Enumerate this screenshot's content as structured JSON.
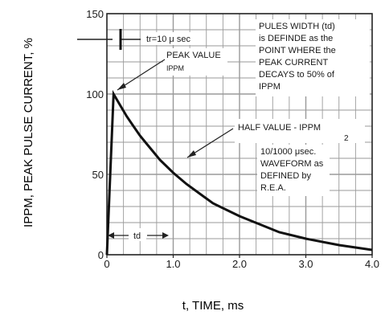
{
  "chart_data": {
    "type": "line",
    "title": "",
    "xlabel": "t, TIME, ms",
    "ylabel": "IPPM, PEAK PULSE CURRENT, %",
    "xlim": [
      0,
      4.0
    ],
    "ylim": [
      0,
      150
    ],
    "x_ticks": [
      "0",
      "1.0",
      "2.0",
      "3.0",
      "4.0"
    ],
    "y_ticks": [
      "0",
      "50",
      "100",
      "150"
    ],
    "grid": true,
    "series": [
      {
        "x": [
          0,
          0.1,
          0.2,
          0.3,
          0.4,
          0.5,
          0.6,
          0.7,
          0.8,
          0.9,
          1.0,
          1.2,
          1.4,
          1.6,
          1.8,
          2.0,
          2.3,
          2.6,
          3.0,
          3.5,
          4.0
        ],
        "y": [
          0,
          100,
          93,
          86,
          80,
          74,
          69,
          64,
          59,
          55,
          51,
          44,
          38,
          32,
          28,
          24,
          19,
          14,
          10,
          6,
          3
        ]
      }
    ],
    "annotations": {
      "tr": "tr=10 μ sec",
      "peak_value": "PEAK VALUE",
      "peak_sub": "IPPM",
      "pulse_width": [
        "PULES WIDTH (td)",
        "is DEFINDE as the",
        "POINT WHERE the",
        "PEAK CURRENT",
        "DECAYS to 50% of",
        "IPPM"
      ],
      "half_value": "HALF VALUE - IPPM",
      "half_value_denominator": "2",
      "waveform": [
        "10/1000 μsec.",
        "WAVEFORM as",
        "DEFINED by",
        "R.E.A."
      ],
      "td": "td"
    },
    "colors": {
      "curve": "#111111",
      "grid": "#9a9a9a",
      "text": "#1a1a1a"
    }
  }
}
